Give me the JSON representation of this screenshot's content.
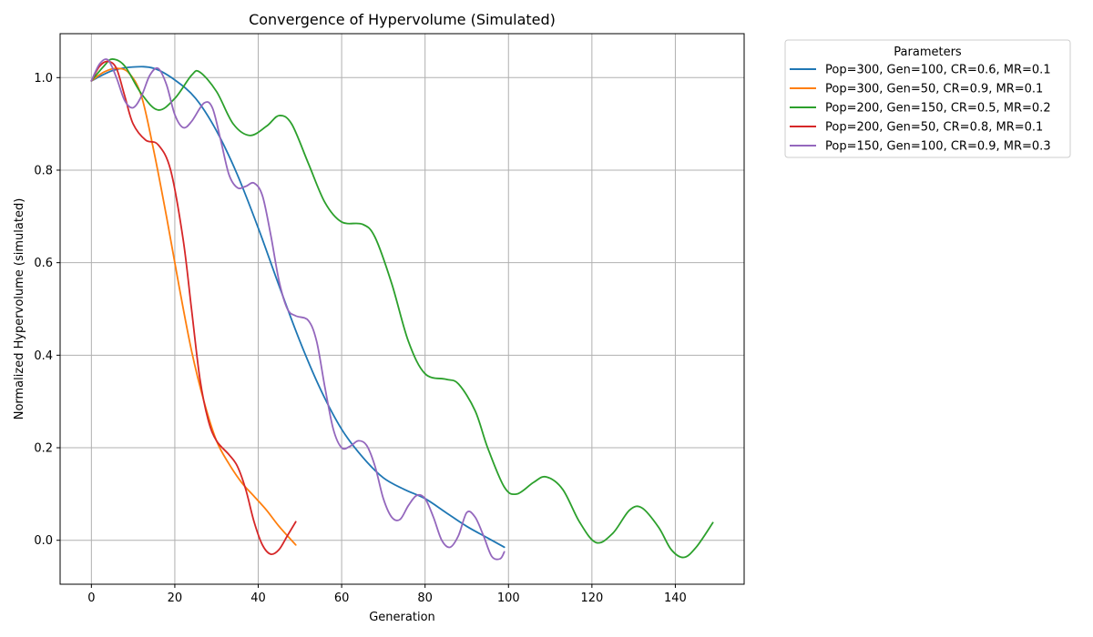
{
  "chart_data": {
    "type": "line",
    "title": "Convergence of Hypervolume (Simulated)",
    "xlabel": "Generation",
    "ylabel": "Normalized Hypervolume (simulated)",
    "xlim": [
      -7.5,
      156.5
    ],
    "ylim": [
      -0.095,
      1.095
    ],
    "xticks": [
      0,
      20,
      40,
      60,
      80,
      100,
      120,
      140
    ],
    "yticks": [
      0.0,
      0.2,
      0.4,
      0.6,
      0.8,
      1.0
    ],
    "ytick_labels": [
      "0.0",
      "0.2",
      "0.4",
      "0.6",
      "0.8",
      "1.0"
    ],
    "grid": true,
    "legend": {
      "title": "Parameters",
      "placement": "outside-top-right"
    },
    "series": [
      {
        "name": "Pop=300, Gen=100, CR=0.6, MR=0.1",
        "color": "#1f77b4",
        "points": [
          [
            0,
            0.993
          ],
          [
            5,
            1.015
          ],
          [
            10,
            1.023
          ],
          [
            15,
            1.02
          ],
          [
            20,
            0.995
          ],
          [
            25,
            0.955
          ],
          [
            30,
            0.885
          ],
          [
            35,
            0.79
          ],
          [
            40,
            0.675
          ],
          [
            45,
            0.55
          ],
          [
            50,
            0.43
          ],
          [
            55,
            0.325
          ],
          [
            60,
            0.24
          ],
          [
            65,
            0.18
          ],
          [
            70,
            0.135
          ],
          [
            75,
            0.11
          ],
          [
            80,
            0.09
          ],
          [
            85,
            0.06
          ],
          [
            90,
            0.03
          ],
          [
            95,
            0.005
          ],
          [
            99,
            -0.015
          ]
        ]
      },
      {
        "name": "Pop=300, Gen=50, CR=0.9, MR=0.1",
        "color": "#ff7f0e",
        "points": [
          [
            0,
            0.993
          ],
          [
            3,
            1.012
          ],
          [
            6,
            1.02
          ],
          [
            9,
            1.01
          ],
          [
            12,
            0.96
          ],
          [
            15,
            0.84
          ],
          [
            18,
            0.7
          ],
          [
            21,
            0.55
          ],
          [
            24,
            0.41
          ],
          [
            27,
            0.3
          ],
          [
            30,
            0.215
          ],
          [
            33,
            0.165
          ],
          [
            36,
            0.125
          ],
          [
            39,
            0.095
          ],
          [
            42,
            0.065
          ],
          [
            45,
            0.03
          ],
          [
            49,
            -0.01
          ]
        ]
      },
      {
        "name": "Pop=200, Gen=150, CR=0.5, MR=0.2",
        "color": "#2ca02c",
        "points": [
          [
            0,
            0.993
          ],
          [
            3,
            1.025
          ],
          [
            5,
            1.04
          ],
          [
            8,
            1.025
          ],
          [
            12,
            0.965
          ],
          [
            16,
            0.93
          ],
          [
            20,
            0.955
          ],
          [
            24,
            1.005
          ],
          [
            26,
            1.012
          ],
          [
            30,
            0.97
          ],
          [
            34,
            0.9
          ],
          [
            38,
            0.875
          ],
          [
            42,
            0.895
          ],
          [
            45,
            0.918
          ],
          [
            48,
            0.9
          ],
          [
            52,
            0.815
          ],
          [
            56,
            0.73
          ],
          [
            60,
            0.688
          ],
          [
            65,
            0.683
          ],
          [
            68,
            0.655
          ],
          [
            72,
            0.555
          ],
          [
            76,
            0.43
          ],
          [
            80,
            0.36
          ],
          [
            85,
            0.348
          ],
          [
            88,
            0.338
          ],
          [
            92,
            0.28
          ],
          [
            95,
            0.2
          ],
          [
            99,
            0.115
          ],
          [
            102,
            0.1
          ],
          [
            106,
            0.125
          ],
          [
            109,
            0.137
          ],
          [
            113,
            0.11
          ],
          [
            117,
            0.04
          ],
          [
            121,
            -0.005
          ],
          [
            125,
            0.015
          ],
          [
            129,
            0.065
          ],
          [
            132,
            0.07
          ],
          [
            136,
            0.028
          ],
          [
            139,
            -0.02
          ],
          [
            142,
            -0.037
          ],
          [
            145,
            -0.015
          ],
          [
            149,
            0.038
          ]
        ]
      },
      {
        "name": "Pop=200, Gen=50, CR=0.8, MR=0.1",
        "color": "#d62728",
        "points": [
          [
            0,
            0.993
          ],
          [
            2,
            1.025
          ],
          [
            4,
            1.035
          ],
          [
            6,
            1.02
          ],
          [
            8,
            0.96
          ],
          [
            10,
            0.9
          ],
          [
            13,
            0.865
          ],
          [
            16,
            0.855
          ],
          [
            19,
            0.8
          ],
          [
            22,
            0.65
          ],
          [
            24,
            0.5
          ],
          [
            26,
            0.35
          ],
          [
            28,
            0.26
          ],
          [
            30,
            0.215
          ],
          [
            33,
            0.185
          ],
          [
            35,
            0.16
          ],
          [
            37,
            0.11
          ],
          [
            39,
            0.04
          ],
          [
            41,
            -0.01
          ],
          [
            43,
            -0.03
          ],
          [
            45,
            -0.02
          ],
          [
            47,
            0.01
          ],
          [
            49,
            0.04
          ]
        ]
      },
      {
        "name": "Pop=150, Gen=100, CR=0.9, MR=0.3",
        "color": "#9467bd",
        "points": [
          [
            0,
            0.993
          ],
          [
            2,
            1.03
          ],
          [
            4,
            1.038
          ],
          [
            6,
            1.0
          ],
          [
            8,
            0.95
          ],
          [
            10,
            0.935
          ],
          [
            12,
            0.96
          ],
          [
            14,
            1.005
          ],
          [
            16,
            1.02
          ],
          [
            18,
            0.985
          ],
          [
            20,
            0.92
          ],
          [
            22,
            0.892
          ],
          [
            24,
            0.905
          ],
          [
            27,
            0.945
          ],
          [
            29,
            0.935
          ],
          [
            31,
            0.865
          ],
          [
            33,
            0.79
          ],
          [
            35,
            0.762
          ],
          [
            37,
            0.765
          ],
          [
            39,
            0.772
          ],
          [
            41,
            0.745
          ],
          [
            43,
            0.66
          ],
          [
            45,
            0.56
          ],
          [
            47,
            0.5
          ],
          [
            49,
            0.485
          ],
          [
            52,
            0.475
          ],
          [
            54,
            0.43
          ],
          [
            56,
            0.33
          ],
          [
            58,
            0.24
          ],
          [
            60,
            0.2
          ],
          [
            62,
            0.203
          ],
          [
            64,
            0.215
          ],
          [
            66,
            0.205
          ],
          [
            68,
            0.16
          ],
          [
            70,
            0.09
          ],
          [
            72,
            0.05
          ],
          [
            74,
            0.045
          ],
          [
            76,
            0.075
          ],
          [
            78,
            0.097
          ],
          [
            80,
            0.09
          ],
          [
            82,
            0.05
          ],
          [
            84,
            0.0
          ],
          [
            86,
            -0.015
          ],
          [
            88,
            0.01
          ],
          [
            90,
            0.06
          ],
          [
            92,
            0.05
          ],
          [
            94,
            0.01
          ],
          [
            96,
            -0.035
          ],
          [
            98,
            -0.04
          ],
          [
            99,
            -0.025
          ]
        ]
      }
    ]
  }
}
